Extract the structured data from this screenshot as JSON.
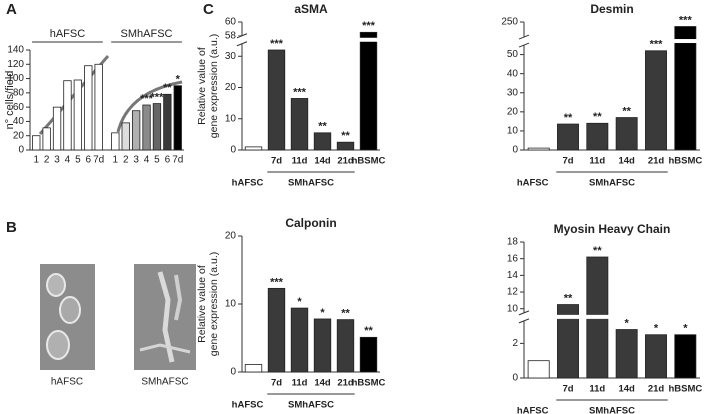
{
  "panel_labels": [
    "A",
    "B",
    "C"
  ],
  "images": [
    {
      "caption": "hAFSC"
    },
    {
      "caption": "SMhAFSC"
    }
  ],
  "chart_data": [
    {
      "type": "bar",
      "ylabel": "n° cells/field",
      "ylim": [
        0,
        140
      ],
      "yticks": [
        0,
        20,
        40,
        60,
        80,
        100,
        120,
        140
      ],
      "groups": [
        {
          "name": "hAFSC",
          "categories": [
            "1",
            "2",
            "3",
            "4",
            "5",
            "6",
            "7d"
          ],
          "values": [
            20,
            31,
            60,
            97,
            98,
            118,
            120
          ],
          "colors": [
            "#ffffff",
            "#ffffff",
            "#ffffff",
            "#ffffff",
            "#ffffff",
            "#ffffff",
            "#ffffff"
          ],
          "annotations": [
            null,
            null,
            null,
            null,
            null,
            null,
            null
          ]
        },
        {
          "name": "SMhAFSC",
          "categories": [
            "1",
            "2",
            "3",
            "4",
            "5",
            "6",
            "7d"
          ],
          "values": [
            24,
            38,
            55,
            63,
            65,
            78,
            90
          ],
          "colors": [
            "#ffffff",
            "#dddddd",
            "#b0b0b0",
            "#8a8a8a",
            "#666666",
            "#3a3a3a",
            "#000000"
          ],
          "annotations": [
            null,
            null,
            null,
            "***",
            "***",
            "**",
            "*"
          ]
        }
      ]
    },
    {
      "type": "bar",
      "title": "aSMA",
      "ylabel": [
        "Relative value of",
        "gene expression (a.u.)"
      ],
      "categories": [
        "hAFSC",
        "7d",
        "11d",
        "14d",
        "21d",
        "hBSMC"
      ],
      "group_label": "SMhAFSC",
      "values": [
        1,
        32,
        16.5,
        5.5,
        2.5,
        58.5
      ],
      "colors": [
        "#ffffff",
        "#3a3a3a",
        "#3a3a3a",
        "#3a3a3a",
        "#3a3a3a",
        "#000000"
      ],
      "annotations": [
        null,
        "***",
        "***",
        "**",
        "**",
        "***"
      ],
      "ylim": [
        0,
        60
      ],
      "ybreak": [
        34,
        58
      ],
      "yticks": [
        0,
        10,
        20,
        30,
        58,
        60
      ]
    },
    {
      "type": "bar",
      "title": "Desmin",
      "categories": [
        "hAFSC",
        "7d",
        "11d",
        "14d",
        "21d",
        "hBSMC"
      ],
      "group_label": "SMhAFSC",
      "values": [
        1,
        13.6,
        14,
        17,
        52,
        247
      ],
      "colors": [
        "#ffffff",
        "#3a3a3a",
        "#3a3a3a",
        "#3a3a3a",
        "#3a3a3a",
        "#000000"
      ],
      "annotations": [
        null,
        "**",
        "**",
        "**",
        "***",
        "***"
      ],
      "ylim": [
        0,
        250
      ],
      "ybreak": [
        55,
        240
      ],
      "yticks": [
        0,
        10,
        20,
        30,
        40,
        50,
        250
      ]
    },
    {
      "type": "bar",
      "title": "Calponin",
      "ylabel": [
        "Relative value of",
        "gene expression (a.u.)"
      ],
      "categories": [
        "hAFSC",
        "7d",
        "11d",
        "14d",
        "21d",
        "hBSMC"
      ],
      "group_label": "SMhAFSC",
      "values": [
        1.1,
        12.3,
        9.4,
        7.8,
        7.7,
        5.1
      ],
      "colors": [
        "#ffffff",
        "#3a3a3a",
        "#3a3a3a",
        "#3a3a3a",
        "#3a3a3a",
        "#000000"
      ],
      "annotations": [
        null,
        "***",
        "*",
        "*",
        "**",
        "**"
      ],
      "ylim": [
        0,
        20
      ],
      "yticks": [
        0,
        10,
        20
      ]
    },
    {
      "type": "bar",
      "title": "Myosin Heavy Chain",
      "categories": [
        "hAFSC",
        "7d",
        "11d",
        "14d",
        "21d",
        "hBSMC"
      ],
      "group_label": "SMhAFSC",
      "values": [
        1,
        10.5,
        16.2,
        2.8,
        2.5,
        2.5
      ],
      "colors": [
        "#ffffff",
        "#3a3a3a",
        "#3a3a3a",
        "#3a3a3a",
        "#3a3a3a",
        "#000000"
      ],
      "annotations": [
        null,
        "**",
        "**",
        "*",
        "*",
        "*"
      ],
      "ylim": [
        0,
        18
      ],
      "ybreak": [
        3.3,
        9.5
      ],
      "yticks": [
        0,
        2,
        10,
        12,
        14,
        16,
        18
      ]
    }
  ]
}
